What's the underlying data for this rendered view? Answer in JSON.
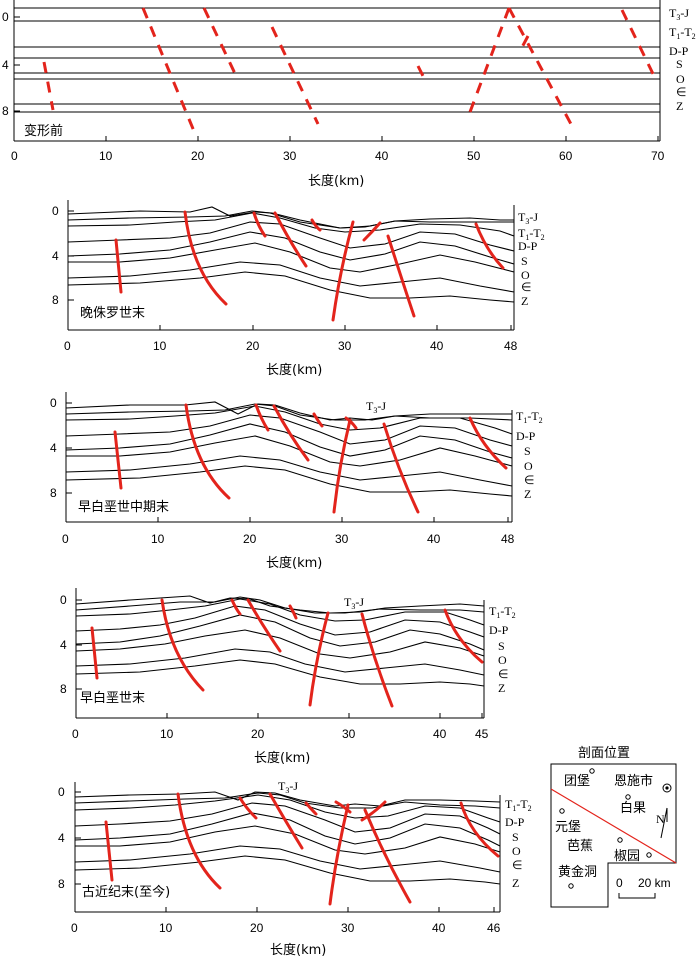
{
  "axis_label": "长度(km)",
  "panels": [
    {
      "stage": "变形前",
      "x_ticks": [
        "0",
        "10",
        "20",
        "30",
        "40",
        "50",
        "60",
        "70"
      ],
      "y_ticks": [
        "0",
        "4",
        "8"
      ],
      "strata": [
        "T3-J",
        "T1-T2",
        "D-P",
        "S",
        "O",
        "∈",
        "Z"
      ]
    },
    {
      "stage": "晚侏罗世末",
      "x_ticks": [
        "0",
        "10",
        "20",
        "30",
        "40",
        "48"
      ],
      "y_ticks": [
        "0",
        "4",
        "8"
      ],
      "strata": [
        "T3-J",
        "T1-T2",
        "D-P",
        "S",
        "O",
        "∈",
        "Z"
      ]
    },
    {
      "stage": "早白垩世中期末",
      "x_ticks": [
        "0",
        "10",
        "20",
        "30",
        "40",
        "48"
      ],
      "y_ticks": [
        "0",
        "4",
        "8"
      ],
      "strata": [
        "T1-T2",
        "D-P",
        "S",
        "O",
        "∈",
        "Z"
      ],
      "inline_label": "T3-J"
    },
    {
      "stage": "早白垩世末",
      "x_ticks": [
        "0",
        "10",
        "20",
        "30",
        "40",
        "45"
      ],
      "y_ticks": [
        "0",
        "4",
        "8"
      ],
      "strata": [
        "T1-T2",
        "D-P",
        "S",
        "O",
        "∈",
        "Z"
      ],
      "inline_label": "T3-J"
    },
    {
      "stage": "古近纪末(至今)",
      "x_ticks": [
        "0",
        "10",
        "20",
        "30",
        "40",
        "46"
      ],
      "y_ticks": [
        "0",
        "4",
        "8"
      ],
      "strata": [
        "T1-T2",
        "D-P",
        "S",
        "O",
        "∈",
        "Z"
      ],
      "inline_label": "T3-J"
    }
  ],
  "location_map": {
    "title": "剖面位置",
    "places": [
      "团堡",
      "恩施市",
      "元堡",
      "白果",
      "芭蕉",
      "椒园",
      "黄金洞"
    ],
    "north": "N",
    "scale_zero": "0",
    "scale_value": "20 km"
  },
  "colors": {
    "fault": "#e3241c",
    "line": "#000000"
  }
}
